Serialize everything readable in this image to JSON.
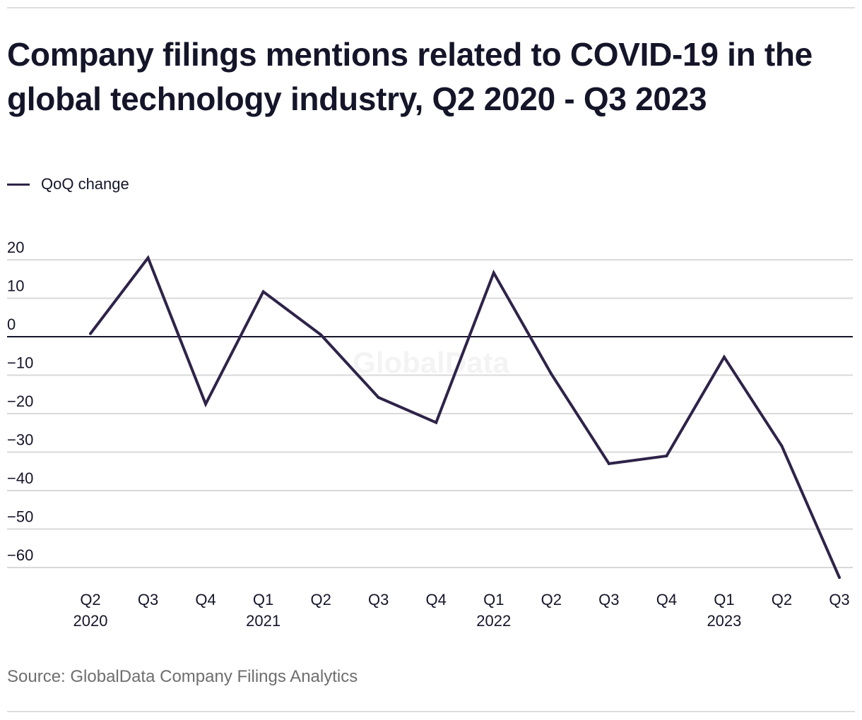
{
  "title": "Company filings mentions related to COVID-19 in the global technology industry, Q2 2020 - Q3 2023",
  "legend": [
    {
      "label": "QoQ change",
      "color": "#2f2349"
    }
  ],
  "source": "Source: GlobalData Company Filings Analytics",
  "watermark": "GlobalData",
  "chart_data": {
    "type": "line",
    "title": "Company filings mentions related to COVID-19 in the global technology industry, Q2 2020 - Q3 2023",
    "xlabel": "",
    "ylabel": "",
    "categories": [
      "Q2 2020",
      "Q3 2020",
      "Q4 2020",
      "Q1 2021",
      "Q2 2021",
      "Q3 2021",
      "Q4 2021",
      "Q1 2022",
      "Q2 2022",
      "Q3 2022",
      "Q4 2022",
      "Q1 2023",
      "Q2 2023",
      "Q3 2023"
    ],
    "x_tick_labels": [
      {
        "quarter": "Q2",
        "year": "2020"
      },
      {
        "quarter": "Q3",
        "year": ""
      },
      {
        "quarter": "Q4",
        "year": ""
      },
      {
        "quarter": "Q1",
        "year": "2021"
      },
      {
        "quarter": "Q2",
        "year": ""
      },
      {
        "quarter": "Q3",
        "year": ""
      },
      {
        "quarter": "Q4",
        "year": ""
      },
      {
        "quarter": "Q1",
        "year": "2022"
      },
      {
        "quarter": "Q2",
        "year": ""
      },
      {
        "quarter": "Q3",
        "year": ""
      },
      {
        "quarter": "Q4",
        "year": ""
      },
      {
        "quarter": "Q1",
        "year": "2023"
      },
      {
        "quarter": "Q2",
        "year": ""
      },
      {
        "quarter": "Q3",
        "year": ""
      }
    ],
    "series": [
      {
        "name": "QoQ change",
        "color": "#2f2349",
        "values": [
          0.8,
          20.5,
          -17.5,
          11.7,
          0.5,
          -15.8,
          -22.3,
          16.6,
          -9.7,
          -33.0,
          -31.0,
          -5.3,
          -28.4,
          -62.6
        ]
      }
    ],
    "y_ticks": [
      20,
      10,
      0,
      -10,
      -20,
      -30,
      -40,
      -50,
      -60
    ],
    "y_tick_labels": [
      "20",
      "10",
      "0",
      "−10",
      "−20",
      "−30",
      "−40",
      "−50",
      "−60"
    ],
    "ylim": [
      -60,
      20
    ],
    "grid": true,
    "zero_line": true,
    "legend_position": "top-left"
  }
}
